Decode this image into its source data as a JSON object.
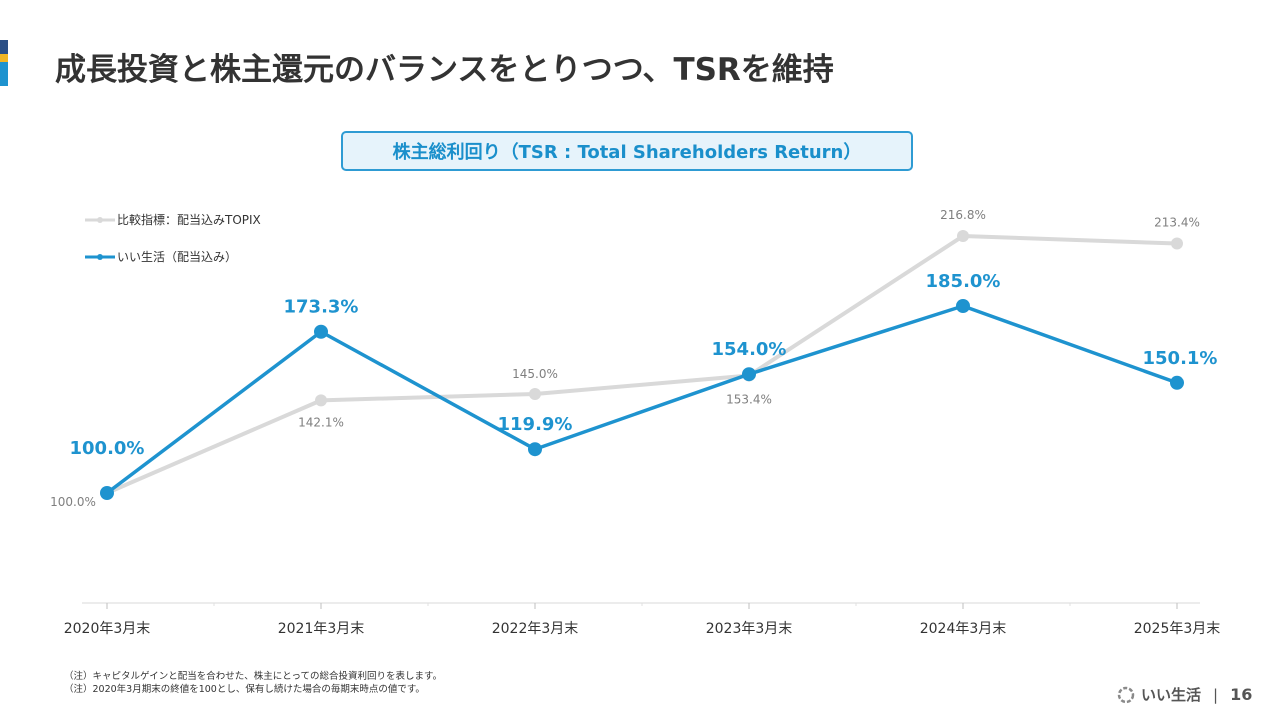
{
  "page": {
    "title": "成長投資と株主還元のバランスをとりつつ、TSRを維持",
    "brand": "いい生活",
    "page_number": "16",
    "notes": [
      "（注）キャピタルゲインと配当を合わせた、株主にとっての総合投資利回りを表します。",
      "（注）2020年3月期末の終値を100とし、保有し続けた場合の毎期末時点の値です。"
    ]
  },
  "colors": {
    "topix": "#d9d9d9",
    "company": "#1e93cf",
    "topix_label": "#7f7f7f",
    "company_label": "#1e93cf"
  },
  "chart_data": {
    "type": "line",
    "title": "株主総利回り（TSR : Total Shareholders Return）",
    "categories": [
      "2020年3月末",
      "2021年3月末",
      "2022年3月末",
      "2023年3月末",
      "2024年3月末",
      "2025年3月末"
    ],
    "series": [
      {
        "name": "比較指標：配当込みTOPIX",
        "values": [
          100.0,
          142.1,
          145.0,
          153.4,
          216.8,
          213.4
        ],
        "labels": [
          "100.0%",
          "142.1%",
          "145.0%",
          "153.4%",
          "216.8%",
          "213.4%"
        ]
      },
      {
        "name": "いい生活（配当込み）",
        "values": [
          100.0,
          173.3,
          119.9,
          154.0,
          185.0,
          150.1
        ],
        "labels": [
          "100.0%",
          "173.3%",
          "119.9%",
          "154.0%",
          "185.0%",
          "150.1%"
        ]
      }
    ],
    "grid": false,
    "legend_position": "top-left"
  }
}
